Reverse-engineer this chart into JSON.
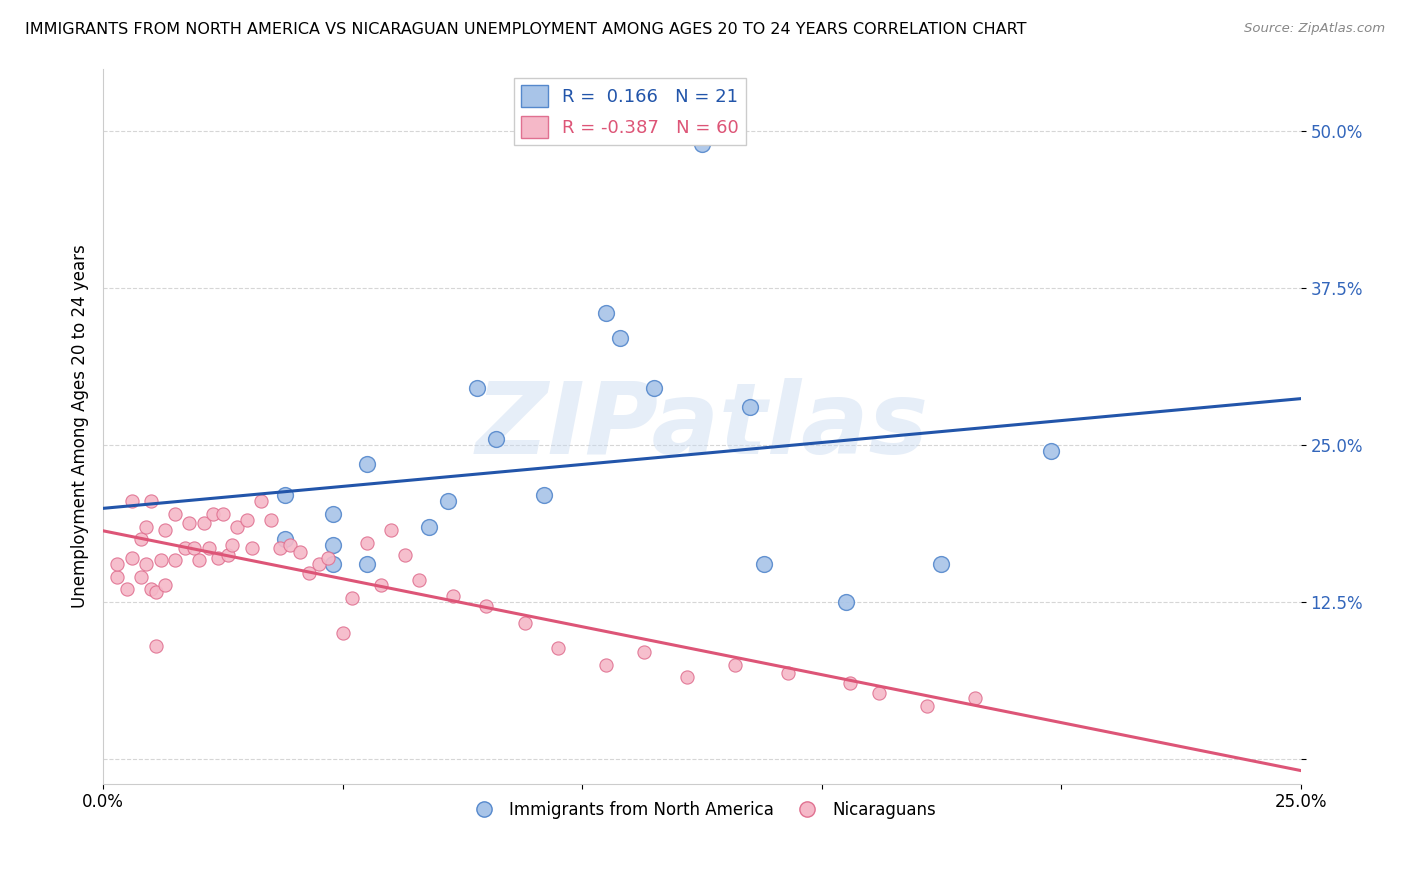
{
  "title": "IMMIGRANTS FROM NORTH AMERICA VS NICARAGUAN UNEMPLOYMENT AMONG AGES 20 TO 24 YEARS CORRELATION CHART",
  "source": "Source: ZipAtlas.com",
  "ylabel": "Unemployment Among Ages 20 to 24 years",
  "r_blue": 0.166,
  "n_blue": 21,
  "r_pink": -0.387,
  "n_pink": 60,
  "xlim": [
    0.0,
    0.25
  ],
  "ylim": [
    -0.02,
    0.55
  ],
  "yticks": [
    0.0,
    0.125,
    0.25,
    0.375,
    0.5
  ],
  "ytick_labels": [
    "",
    "12.5%",
    "25.0%",
    "37.5%",
    "50.0%"
  ],
  "xticks": [
    0.0,
    0.05,
    0.1,
    0.15,
    0.2,
    0.25
  ],
  "xtick_labels": [
    "0.0%",
    "",
    "",
    "",
    "",
    "25.0%"
  ],
  "blue_scatter_color": "#a8c4e8",
  "blue_edge_color": "#5588cc",
  "pink_scatter_color": "#f5b8c8",
  "pink_edge_color": "#e07090",
  "line_blue": "#2255aa",
  "line_pink": "#dd5577",
  "watermark_text": "ZIPatlas",
  "legend_blue_label": "Immigrants from North America",
  "legend_pink_label": "Nicaraguans",
  "blue_scatter_x": [
    0.038,
    0.038,
    0.048,
    0.048,
    0.048,
    0.055,
    0.055,
    0.068,
    0.072,
    0.078,
    0.082,
    0.092,
    0.105,
    0.108,
    0.115,
    0.125,
    0.135,
    0.138,
    0.155,
    0.175,
    0.198
  ],
  "blue_scatter_y": [
    0.175,
    0.21,
    0.155,
    0.17,
    0.195,
    0.155,
    0.235,
    0.185,
    0.205,
    0.295,
    0.255,
    0.21,
    0.355,
    0.335,
    0.295,
    0.49,
    0.28,
    0.155,
    0.125,
    0.155,
    0.245
  ],
  "pink_scatter_x": [
    0.003,
    0.003,
    0.005,
    0.006,
    0.006,
    0.008,
    0.008,
    0.009,
    0.009,
    0.01,
    0.01,
    0.011,
    0.011,
    0.012,
    0.013,
    0.013,
    0.015,
    0.015,
    0.017,
    0.018,
    0.019,
    0.02,
    0.021,
    0.022,
    0.023,
    0.024,
    0.025,
    0.026,
    0.027,
    0.028,
    0.03,
    0.031,
    0.033,
    0.035,
    0.037,
    0.039,
    0.041,
    0.043,
    0.045,
    0.047,
    0.05,
    0.052,
    0.055,
    0.058,
    0.06,
    0.063,
    0.066,
    0.073,
    0.08,
    0.088,
    0.095,
    0.105,
    0.113,
    0.122,
    0.132,
    0.143,
    0.156,
    0.162,
    0.172,
    0.182
  ],
  "pink_scatter_y": [
    0.145,
    0.155,
    0.135,
    0.16,
    0.205,
    0.145,
    0.175,
    0.155,
    0.185,
    0.205,
    0.135,
    0.133,
    0.09,
    0.158,
    0.182,
    0.138,
    0.195,
    0.158,
    0.168,
    0.188,
    0.168,
    0.158,
    0.188,
    0.168,
    0.195,
    0.16,
    0.195,
    0.162,
    0.17,
    0.185,
    0.19,
    0.168,
    0.205,
    0.19,
    0.168,
    0.17,
    0.165,
    0.148,
    0.155,
    0.16,
    0.1,
    0.128,
    0.172,
    0.138,
    0.182,
    0.162,
    0.142,
    0.13,
    0.122,
    0.108,
    0.088,
    0.075,
    0.085,
    0.065,
    0.075,
    0.068,
    0.06,
    0.052,
    0.042,
    0.048
  ]
}
